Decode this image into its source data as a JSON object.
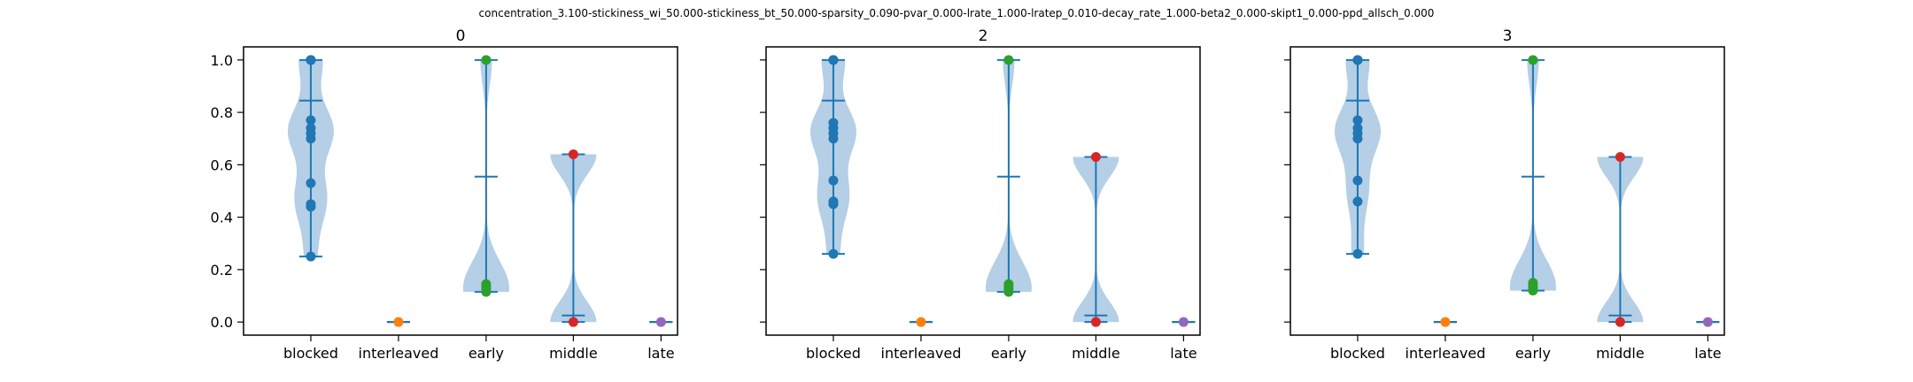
{
  "suptitle": "concentration_3.100-stickiness_wi_50.000-stickiness_bt_50.000-sparsity_0.090-pvar_0.000-lrate_1.000-lratep_0.010-decay_rate_1.000-beta2_0.000-skipt1_0.000-ppd_allsch_0.000",
  "colors": {
    "violin": "#b4cfe6",
    "line": "#1f77b4",
    "blocked": "#1f77b4",
    "interleaved": "#ff7f0e",
    "early": "#2ca02c",
    "middle": "#d62728",
    "late": "#9467bd"
  },
  "chart_data": [
    {
      "type": "violin",
      "title": "0",
      "categories": [
        "blocked",
        "interleaved",
        "early",
        "middle",
        "late"
      ],
      "ylim": [
        -0.05,
        1.05
      ],
      "yticks": [
        "0.0",
        "0.2",
        "0.4",
        "0.6",
        "0.8",
        "1.0"
      ],
      "show_yticklabels": true,
      "series": [
        {
          "category": "blocked",
          "min": 0.25,
          "max": 1.0,
          "mean": 0.845,
          "points": [
            0.25,
            0.44,
            0.45,
            0.53,
            0.7,
            0.72,
            0.74,
            0.77,
            1.0,
            1.0
          ]
        },
        {
          "category": "interleaved",
          "min": 0.0,
          "max": 0.0,
          "mean": 0.0,
          "points": [
            0.0
          ]
        },
        {
          "category": "early",
          "min": 0.115,
          "max": 1.0,
          "mean": 0.555,
          "points": [
            0.115,
            0.125,
            0.135,
            0.145,
            1.0
          ]
        },
        {
          "category": "middle",
          "min": 0.0,
          "max": 0.64,
          "mean": 0.025,
          "points": [
            0.0,
            0.64
          ]
        },
        {
          "category": "late",
          "min": 0.0,
          "max": 0.0,
          "mean": 0.0,
          "points": [
            0.0
          ]
        }
      ]
    },
    {
      "type": "violin",
      "title": "2",
      "categories": [
        "blocked",
        "interleaved",
        "early",
        "middle",
        "late"
      ],
      "ylim": [
        -0.05,
        1.05
      ],
      "yticks": [
        "0.0",
        "0.2",
        "0.4",
        "0.6",
        "0.8",
        "1.0"
      ],
      "show_yticklabels": false,
      "series": [
        {
          "category": "blocked",
          "min": 0.26,
          "max": 1.0,
          "mean": 0.845,
          "points": [
            0.26,
            0.45,
            0.46,
            0.54,
            0.7,
            0.72,
            0.74,
            0.76,
            1.0,
            1.0
          ]
        },
        {
          "category": "interleaved",
          "min": 0.0,
          "max": 0.0,
          "mean": 0.0,
          "points": [
            0.0
          ]
        },
        {
          "category": "early",
          "min": 0.115,
          "max": 1.0,
          "mean": 0.555,
          "points": [
            0.115,
            0.125,
            0.135,
            0.145,
            1.0
          ]
        },
        {
          "category": "middle",
          "min": 0.0,
          "max": 0.63,
          "mean": 0.025,
          "points": [
            0.0,
            0.63
          ]
        },
        {
          "category": "late",
          "min": 0.0,
          "max": 0.0,
          "mean": 0.0,
          "points": [
            0.0
          ]
        }
      ]
    },
    {
      "type": "violin",
      "title": "3",
      "categories": [
        "blocked",
        "interleaved",
        "early",
        "middle",
        "late"
      ],
      "ylim": [
        -0.05,
        1.05
      ],
      "yticks": [
        "0.0",
        "0.2",
        "0.4",
        "0.6",
        "0.8",
        "1.0"
      ],
      "show_yticklabels": false,
      "series": [
        {
          "category": "blocked",
          "min": 0.26,
          "max": 1.0,
          "mean": 0.845,
          "points": [
            0.26,
            0.46,
            0.54,
            0.7,
            0.72,
            0.74,
            0.77,
            1.0,
            1.0
          ]
        },
        {
          "category": "interleaved",
          "min": 0.0,
          "max": 0.0,
          "mean": 0.0,
          "points": [
            0.0
          ]
        },
        {
          "category": "early",
          "min": 0.12,
          "max": 1.0,
          "mean": 0.555,
          "points": [
            0.12,
            0.13,
            0.14,
            0.15,
            1.0
          ]
        },
        {
          "category": "middle",
          "min": 0.0,
          "max": 0.63,
          "mean": 0.025,
          "points": [
            0.0,
            0.63
          ]
        },
        {
          "category": "late",
          "min": 0.0,
          "max": 0.0,
          "mean": 0.0,
          "points": [
            0.0
          ]
        }
      ]
    }
  ]
}
